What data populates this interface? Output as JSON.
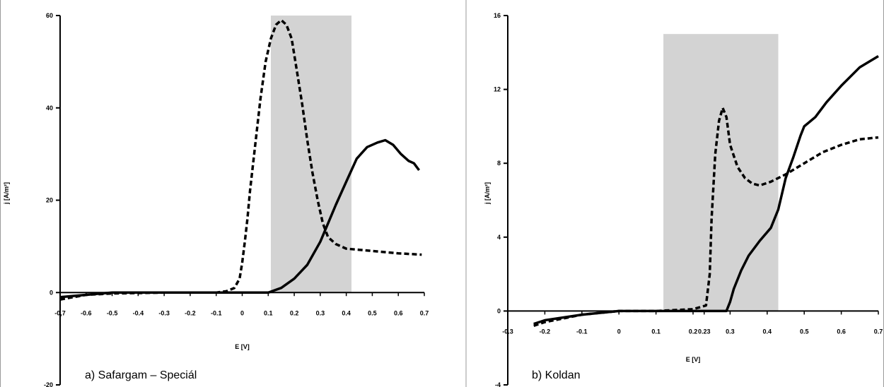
{
  "chart_data": [
    {
      "type": "line",
      "caption": "a) Safargam – Speciál",
      "xlabel": "E [V]",
      "ylabel": "j [A/m²]",
      "xlim": [
        -0.7,
        0.7
      ],
      "ylim": [
        -20,
        60
      ],
      "x_ticks": [
        "-0,7",
        "-0.6",
        "-0.5",
        "-0.4",
        "-0.3",
        "-0.2",
        "-0.1",
        "0",
        "0.1",
        "0.2",
        "0.3",
        "0.4",
        "0.5",
        "0.6",
        "0.7"
      ],
      "x_tick_values": [
        -0.7,
        -0.6,
        -0.5,
        -0.4,
        -0.3,
        -0.2,
        -0.1,
        0,
        0.1,
        0.2,
        0.3,
        0.4,
        0.5,
        0.6,
        0.7
      ],
      "y_ticks": [
        "-20",
        "0",
        "20",
        "40",
        "60"
      ],
      "y_tick_values": [
        -20,
        0,
        20,
        40,
        60
      ],
      "shaded_region": {
        "x": [
          0.11,
          0.42
        ],
        "y": [
          0,
          60
        ],
        "color": "#d3d3d3"
      },
      "series": [
        {
          "style": "dashed",
          "points": [
            [
              -0.7,
              -1.5
            ],
            [
              -0.6,
              -0.5
            ],
            [
              -0.5,
              -0.2
            ],
            [
              -0.3,
              0
            ],
            [
              -0.1,
              0
            ],
            [
              -0.06,
              0.3
            ],
            [
              -0.03,
              1
            ],
            [
              -0.01,
              3
            ],
            [
              0.0,
              6.5
            ],
            [
              0.01,
              11
            ],
            [
              0.02,
              16
            ],
            [
              0.03,
              22
            ],
            [
              0.05,
              32
            ],
            [
              0.07,
              42
            ],
            [
              0.09,
              50
            ],
            [
              0.11,
              55
            ],
            [
              0.13,
              58
            ],
            [
              0.15,
              59
            ],
            [
              0.17,
              58
            ],
            [
              0.19,
              55
            ],
            [
              0.21,
              48
            ],
            [
              0.23,
              41
            ],
            [
              0.25,
              33
            ],
            [
              0.27,
              26
            ],
            [
              0.29,
              20
            ],
            [
              0.31,
              15
            ],
            [
              0.33,
              12
            ],
            [
              0.36,
              10.5
            ],
            [
              0.4,
              9.5
            ],
            [
              0.5,
              9
            ],
            [
              0.6,
              8.5
            ],
            [
              0.69,
              8.2
            ]
          ]
        },
        {
          "style": "solid",
          "points": [
            [
              -0.7,
              -1
            ],
            [
              -0.6,
              -0.5
            ],
            [
              -0.5,
              0
            ],
            [
              -0.3,
              0
            ],
            [
              -0.1,
              0
            ],
            [
              0.1,
              0
            ],
            [
              0.15,
              1
            ],
            [
              0.2,
              3
            ],
            [
              0.25,
              6
            ],
            [
              0.3,
              11
            ],
            [
              0.33,
              15
            ],
            [
              0.36,
              19
            ],
            [
              0.4,
              24
            ],
            [
              0.44,
              29
            ],
            [
              0.48,
              31.5
            ],
            [
              0.52,
              32.5
            ],
            [
              0.55,
              33
            ],
            [
              0.58,
              32
            ],
            [
              0.61,
              30
            ],
            [
              0.64,
              28.5
            ],
            [
              0.66,
              28
            ],
            [
              0.68,
              26.5
            ]
          ]
        }
      ]
    },
    {
      "type": "line",
      "caption": "b) Koldan",
      "xlabel": "E [V]",
      "ylabel": "j [A/m²]",
      "xlim": [
        -0.3,
        0.7
      ],
      "ylim": [
        -4,
        16
      ],
      "x_ticks": [
        "-0.3",
        "-0.2",
        "-0.1",
        "0",
        "0.1",
        "0.2",
        "0.23",
        "0.3",
        "0.4",
        "0.5",
        "0.6",
        "0.7"
      ],
      "x_tick_values": [
        -0.3,
        -0.2,
        -0.1,
        0,
        0.1,
        0.2,
        0.23,
        0.3,
        0.4,
        0.5,
        0.6,
        0.7
      ],
      "y_ticks": [
        "-4",
        "0",
        "4",
        "8",
        "12",
        "16"
      ],
      "y_tick_values": [
        -4,
        0,
        4,
        8,
        12,
        16
      ],
      "shaded_region": {
        "x": [
          0.12,
          0.43
        ],
        "y": [
          0,
          15
        ],
        "color": "#d3d3d3"
      },
      "series": [
        {
          "style": "dashed",
          "points": [
            [
              -0.23,
              -0.8
            ],
            [
              -0.2,
              -0.6
            ],
            [
              -0.15,
              -0.4
            ],
            [
              -0.1,
              -0.2
            ],
            [
              0,
              0
            ],
            [
              0.1,
              0
            ],
            [
              0.2,
              0.1
            ],
            [
              0.235,
              0.3
            ],
            [
              0.245,
              2
            ],
            [
              0.25,
              5
            ],
            [
              0.26,
              8.5
            ],
            [
              0.27,
              10.3
            ],
            [
              0.28,
              11
            ],
            [
              0.29,
              10.5
            ],
            [
              0.3,
              9
            ],
            [
              0.32,
              7.8
            ],
            [
              0.34,
              7.2
            ],
            [
              0.36,
              6.9
            ],
            [
              0.38,
              6.8
            ],
            [
              0.41,
              7
            ],
            [
              0.45,
              7.4
            ],
            [
              0.5,
              8
            ],
            [
              0.55,
              8.6
            ],
            [
              0.6,
              9
            ],
            [
              0.65,
              9.3
            ],
            [
              0.7,
              9.4
            ]
          ]
        },
        {
          "style": "solid",
          "points": [
            [
              -0.23,
              -0.7
            ],
            [
              -0.2,
              -0.5
            ],
            [
              -0.1,
              -0.2
            ],
            [
              0,
              0
            ],
            [
              0.1,
              0
            ],
            [
              0.2,
              0
            ],
            [
              0.29,
              0
            ],
            [
              0.3,
              0.5
            ],
            [
              0.31,
              1.2
            ],
            [
              0.33,
              2.2
            ],
            [
              0.35,
              3
            ],
            [
              0.38,
              3.8
            ],
            [
              0.41,
              4.5
            ],
            [
              0.43,
              5.5
            ],
            [
              0.45,
              7.2
            ],
            [
              0.47,
              8.3
            ],
            [
              0.49,
              9.5
            ],
            [
              0.5,
              10
            ],
            [
              0.53,
              10.5
            ],
            [
              0.56,
              11.3
            ],
            [
              0.6,
              12.2
            ],
            [
              0.65,
              13.2
            ],
            [
              0.7,
              13.8
            ]
          ]
        }
      ]
    }
  ]
}
